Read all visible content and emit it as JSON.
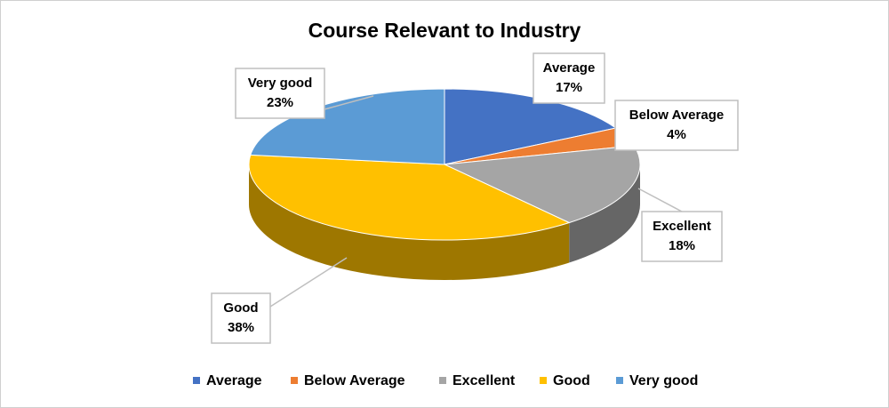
{
  "chart_data": {
    "type": "pie",
    "title": "Course Relevant to Industry",
    "categories": [
      "Average",
      "Below Average",
      "Excellent",
      "Good",
      "Very good"
    ],
    "values": [
      17,
      4,
      18,
      38,
      23
    ],
    "value_labels": [
      "17%",
      "4%",
      "18%",
      "38%",
      "23%"
    ],
    "colors": [
      "#4472c4",
      "#ed7d31",
      "#a5a5a5",
      "#ffc000",
      "#5b9bd5"
    ],
    "legend": "bottom"
  }
}
